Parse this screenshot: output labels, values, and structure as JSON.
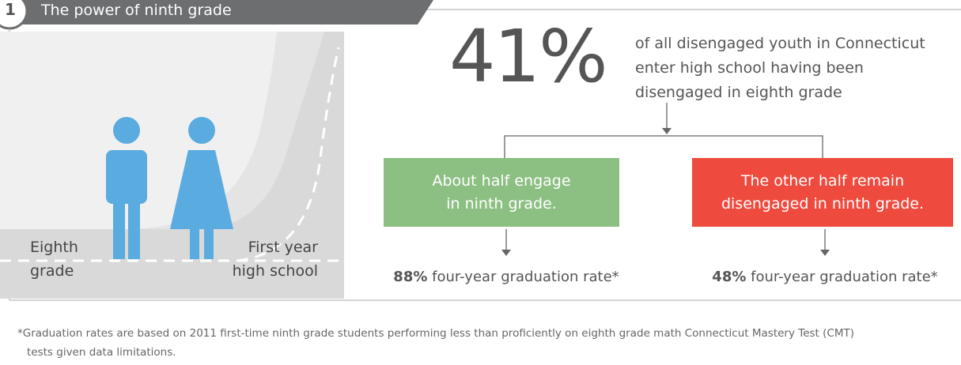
{
  "header": {
    "number": "1",
    "title": "The power of ninth grade"
  },
  "illustration": {
    "left_label": [
      "Eighth",
      "grade"
    ],
    "right_label": [
      "First year",
      "high school"
    ]
  },
  "stat": {
    "value": "41%",
    "text": [
      "of all disengaged youth in Connecticut",
      "enter high school having been",
      "disengaged in eighth grade"
    ]
  },
  "branches": [
    {
      "box": [
        "About half engage",
        "in ninth grade."
      ],
      "rate": "88%",
      "rate_text": "four-year graduation rate*"
    },
    {
      "box": [
        "The other half remain",
        "disengaged in ninth grade."
      ],
      "rate": "48%",
      "rate_text": "four-year graduation rate*"
    }
  ],
  "footnote": [
    "*Graduation rates are based on 2011 first-time ninth grade students performing less than proficiently on eighth grade math Connecticut Mastery Test (CMT)",
    "tests given data limitations."
  ]
}
